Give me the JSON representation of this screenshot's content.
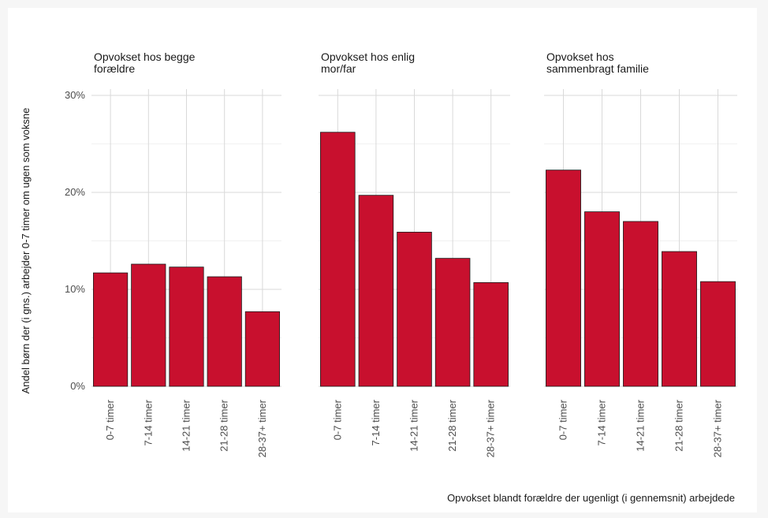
{
  "chart_data": {
    "type": "bar",
    "bar_color": "#c8102e",
    "ylabel": "Andel børn der (i gns.) arbejder 0-7 timer om ugen som voksne",
    "xlabel": "Opvokset blandt forældre der ugenligt (i gennemsnit) arbejdede",
    "ylim": [
      0,
      30
    ],
    "yticks": [
      0,
      10,
      20,
      30
    ],
    "ytick_labels": [
      "0%",
      "10%",
      "20%",
      "30%"
    ],
    "categories": [
      "0-7 timer",
      "7-14 timer",
      "14-21 timer",
      "21-28 timer",
      "28-37+ timer"
    ],
    "grid": true,
    "legend": "none",
    "panels": [
      {
        "title_lines": [
          "Opvokset hos begge",
          "forældre"
        ],
        "values": [
          11.7,
          12.6,
          12.3,
          11.3,
          7.7
        ]
      },
      {
        "title_lines": [
          "Opvokset hos enlig",
          "mor/far"
        ],
        "values": [
          26.2,
          19.7,
          15.9,
          13.2,
          10.7
        ]
      },
      {
        "title_lines": [
          "Opvokset hos",
          "sammenbragt familie"
        ],
        "values": [
          22.3,
          18.0,
          17.0,
          13.9,
          10.8
        ]
      }
    ]
  }
}
